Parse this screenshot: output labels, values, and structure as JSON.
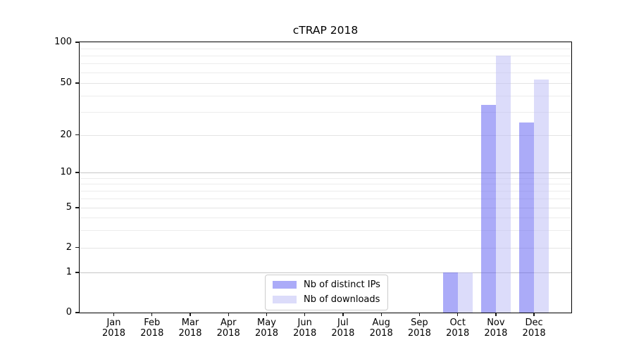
{
  "title": "cTRAP 2018",
  "chart_data": {
    "type": "bar",
    "title": "cTRAP 2018",
    "categories": [
      "Jan 2018",
      "Feb 2018",
      "Mar 2018",
      "Apr 2018",
      "May 2018",
      "Jun 2018",
      "Jul 2018",
      "Aug 2018",
      "Sep 2018",
      "Oct 2018",
      "Nov 2018",
      "Dec 2018"
    ],
    "series": [
      {
        "name": "Nb of distinct IPs",
        "color": "#5858f2",
        "opacity": 0.5,
        "rendered_color": "#a9a9f8",
        "values": [
          0,
          0,
          0,
          0,
          0,
          0,
          0,
          0,
          0,
          1,
          34,
          25
        ]
      },
      {
        "name": "Nb of downloads",
        "color": "#babaf5",
        "opacity": 0.5,
        "rendered_color": "#d9d9fa",
        "values": [
          0,
          0,
          0,
          0,
          0,
          0,
          0,
          0,
          0,
          1,
          80,
          53
        ]
      }
    ],
    "xlabel": "",
    "ylabel": "",
    "ylim": [
      0,
      100
    ],
    "yscale": "symlog",
    "yticks": [
      0,
      1,
      2,
      5,
      10,
      20,
      50,
      100
    ],
    "minor_yticks": [
      3,
      4,
      6,
      7,
      8,
      9,
      30,
      40,
      60,
      70,
      80,
      90
    ],
    "grid": "horizontal major and minor gridlines",
    "legend_position": "lower center inside plot"
  }
}
